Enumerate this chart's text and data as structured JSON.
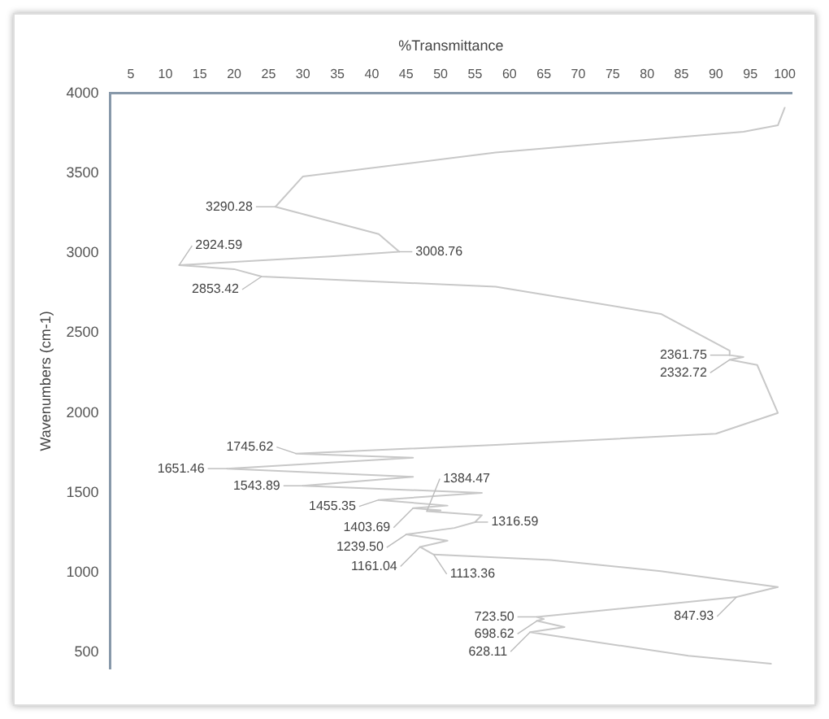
{
  "chart_data": {
    "type": "line",
    "xlabel": "%Transmittance",
    "ylabel": "Wavenumbers (cm-1)",
    "xlim": [
      2,
      101
    ],
    "xticks": [
      5,
      10,
      15,
      20,
      25,
      30,
      35,
      40,
      45,
      50,
      55,
      60,
      65,
      70,
      75,
      80,
      85,
      90,
      95,
      100
    ],
    "ylim": [
      400,
      4000
    ],
    "yticks": [
      4000,
      3500,
      3000,
      2500,
      2000,
      1500,
      1000,
      500
    ],
    "grid": false,
    "legend": false,
    "marker": "none",
    "line_style": "solid",
    "series": [
      {
        "color": "#c8c8c8",
        "x": [
          100,
          99,
          94,
          58,
          30,
          26,
          41,
          44,
          34,
          12,
          20,
          24,
          58,
          82,
          92,
          92,
          94,
          92,
          96,
          99,
          90,
          58,
          29,
          46,
          19,
          46,
          30,
          56,
          41,
          51,
          46,
          50,
          48,
          56,
          55,
          52,
          45,
          51,
          47,
          49,
          66,
          82,
          99,
          93,
          82,
          64,
          65,
          64,
          68,
          63,
          86,
          98
        ],
        "values": [
          3910,
          3800,
          3760,
          3630,
          3480,
          3290.28,
          3120,
          3008.76,
          2980,
          2924.59,
          2900,
          2853.42,
          2790,
          2620,
          2390,
          2361.75,
          2350,
          2332.72,
          2300,
          2000,
          1870,
          1800,
          1745.62,
          1720,
          1651.46,
          1600,
          1543.89,
          1500,
          1455.35,
          1420,
          1403.69,
          1390,
          1384.47,
          1360,
          1316.59,
          1280,
          1239.5,
          1200,
          1161.04,
          1113.36,
          1080,
          1010,
          910,
          847.93,
          800,
          723.5,
          710,
          698.62,
          660,
          628.11,
          480,
          430
        ]
      }
    ],
    "annotations": [
      {
        "text": "3290.28",
        "x": 26,
        "y": 3290.28
      },
      {
        "text": "3008.76",
        "x": 44,
        "y": 3008.76
      },
      {
        "text": "2924.59",
        "x": 12,
        "y": 2924.59
      },
      {
        "text": "2853.42",
        "x": 24,
        "y": 2853.42
      },
      {
        "text": "2361.75",
        "x": 92,
        "y": 2361.75
      },
      {
        "text": "2332.72",
        "x": 92,
        "y": 2332.72
      },
      {
        "text": "1745.62",
        "x": 29,
        "y": 1745.62
      },
      {
        "text": "1651.46",
        "x": 19,
        "y": 1651.46
      },
      {
        "text": "1543.89",
        "x": 30,
        "y": 1543.89
      },
      {
        "text": "1455.35",
        "x": 41,
        "y": 1455.35
      },
      {
        "text": "1403.69",
        "x": 46,
        "y": 1403.69
      },
      {
        "text": "1384.47",
        "x": 48,
        "y": 1384.47
      },
      {
        "text": "1316.59",
        "x": 55,
        "y": 1316.59
      },
      {
        "text": "1239.50",
        "x": 45,
        "y": 1239.5
      },
      {
        "text": "1161.04",
        "x": 47,
        "y": 1161.04
      },
      {
        "text": "1113.36",
        "x": 49,
        "y": 1113.36
      },
      {
        "text": "847.93",
        "x": 93,
        "y": 847.93
      },
      {
        "text": "723.50",
        "x": 64,
        "y": 723.5
      },
      {
        "text": "698.62",
        "x": 64,
        "y": 698.62
      },
      {
        "text": "628.11",
        "x": 63,
        "y": 628.11
      }
    ]
  }
}
